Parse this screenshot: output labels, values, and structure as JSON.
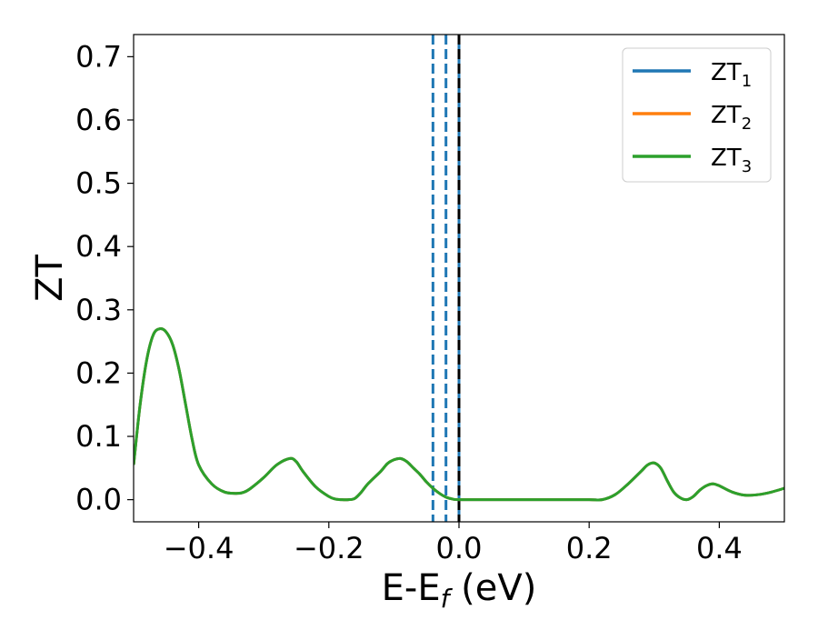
{
  "chart_data": {
    "type": "line",
    "title": "",
    "xlabel": "E-E",
    "xlabel_sub": "f",
    "xlabel_unit": " (eV)",
    "ylabel": "ZT",
    "xlim": [
      -0.5,
      0.5
    ],
    "ylim": [
      -0.035,
      0.735
    ],
    "x_ticks": [
      -0.4,
      -0.2,
      0.0,
      0.2,
      0.4
    ],
    "x_tick_labels": [
      "−0.4",
      "−0.2",
      "0.0",
      "0.2",
      "0.4"
    ],
    "y_ticks": [
      0.0,
      0.1,
      0.2,
      0.3,
      0.4,
      0.5,
      0.6,
      0.7
    ],
    "y_tick_labels": [
      "0.0",
      "0.1",
      "0.2",
      "0.3",
      "0.4",
      "0.5",
      "0.6",
      "0.7"
    ],
    "grid": false,
    "legend_position": "top-right",
    "series": [
      {
        "name": "ZT",
        "sub": "1",
        "color": "#1f77b4"
      },
      {
        "name": "ZT",
        "sub": "2",
        "color": "#ff7f0e"
      },
      {
        "name": "ZT",
        "sub": "3",
        "color": "#2ca02c"
      }
    ],
    "curve": {
      "x": [
        -0.5,
        -0.49,
        -0.48,
        -0.47,
        -0.46,
        -0.45,
        -0.44,
        -0.43,
        -0.42,
        -0.41,
        -0.4,
        -0.38,
        -0.36,
        -0.34,
        -0.33,
        -0.32,
        -0.3,
        -0.28,
        -0.26,
        -0.25,
        -0.24,
        -0.22,
        -0.2,
        -0.19,
        -0.18,
        -0.17,
        -0.16,
        -0.15,
        -0.14,
        -0.12,
        -0.11,
        -0.1,
        -0.09,
        -0.08,
        -0.07,
        -0.06,
        -0.05,
        -0.04,
        -0.03,
        -0.02,
        -0.01,
        0.0,
        0.05,
        0.1,
        0.15,
        0.2,
        0.22,
        0.24,
        0.26,
        0.28,
        0.29,
        0.3,
        0.31,
        0.32,
        0.33,
        0.34,
        0.35,
        0.36,
        0.37,
        0.38,
        0.39,
        0.4,
        0.42,
        0.44,
        0.46,
        0.48,
        0.5
      ],
      "y": [
        0.055,
        0.15,
        0.22,
        0.26,
        0.27,
        0.265,
        0.245,
        0.205,
        0.15,
        0.095,
        0.055,
        0.025,
        0.012,
        0.01,
        0.012,
        0.018,
        0.035,
        0.055,
        0.065,
        0.06,
        0.045,
        0.02,
        0.005,
        0.001,
        0.0,
        0.0,
        0.002,
        0.012,
        0.025,
        0.045,
        0.057,
        0.063,
        0.065,
        0.06,
        0.05,
        0.04,
        0.028,
        0.018,
        0.01,
        0.004,
        0.001,
        0.0,
        0.0,
        0.0,
        0.0,
        0.0,
        0.0,
        0.008,
        0.025,
        0.045,
        0.055,
        0.058,
        0.05,
        0.03,
        0.012,
        0.003,
        0.0,
        0.005,
        0.015,
        0.022,
        0.025,
        0.022,
        0.012,
        0.007,
        0.008,
        0.012,
        0.018
      ]
    },
    "vertical_lines": [
      {
        "x": -0.04,
        "style": "dashed",
        "color": "#1f77b4"
      },
      {
        "x": -0.02,
        "style": "dashed",
        "color": "#1f77b4"
      },
      {
        "x": 0.0,
        "style": "solid",
        "color": "#1f77b4"
      },
      {
        "x": 0.0,
        "style": "dashed",
        "color": "#000000"
      }
    ]
  }
}
